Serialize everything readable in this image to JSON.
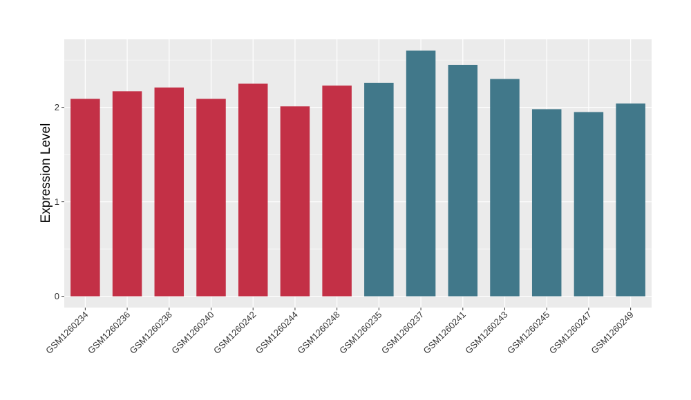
{
  "chart_data": {
    "type": "bar",
    "title": "",
    "xlabel": "",
    "ylabel": "Expression Level",
    "ylim": [
      -0.12,
      2.72
    ],
    "yticks": [
      0,
      1,
      2
    ],
    "ytick_labels": [
      "0",
      "1",
      "2"
    ],
    "grid": true,
    "legend": "none",
    "categories": [
      "GSM1260234",
      "GSM1260236",
      "GSM1260238",
      "GSM1260240",
      "GSM1260242",
      "GSM1260244",
      "GSM1260248",
      "GSM1260235",
      "GSM1260237",
      "GSM1260241",
      "GSM1260243",
      "GSM1260245",
      "GSM1260247",
      "GSM1260249"
    ],
    "values": [
      2.09,
      2.17,
      2.21,
      2.09,
      2.25,
      2.01,
      2.23,
      2.26,
      2.6,
      2.45,
      2.3,
      1.98,
      1.95,
      2.04
    ],
    "group": [
      "A",
      "A",
      "A",
      "A",
      "A",
      "A",
      "A",
      "B",
      "B",
      "B",
      "B",
      "B",
      "B",
      "B"
    ],
    "colors": {
      "A": "#c33046",
      "B": "#41788a"
    },
    "background_color": "#ebebeb",
    "grid_color": "#ffffff"
  }
}
